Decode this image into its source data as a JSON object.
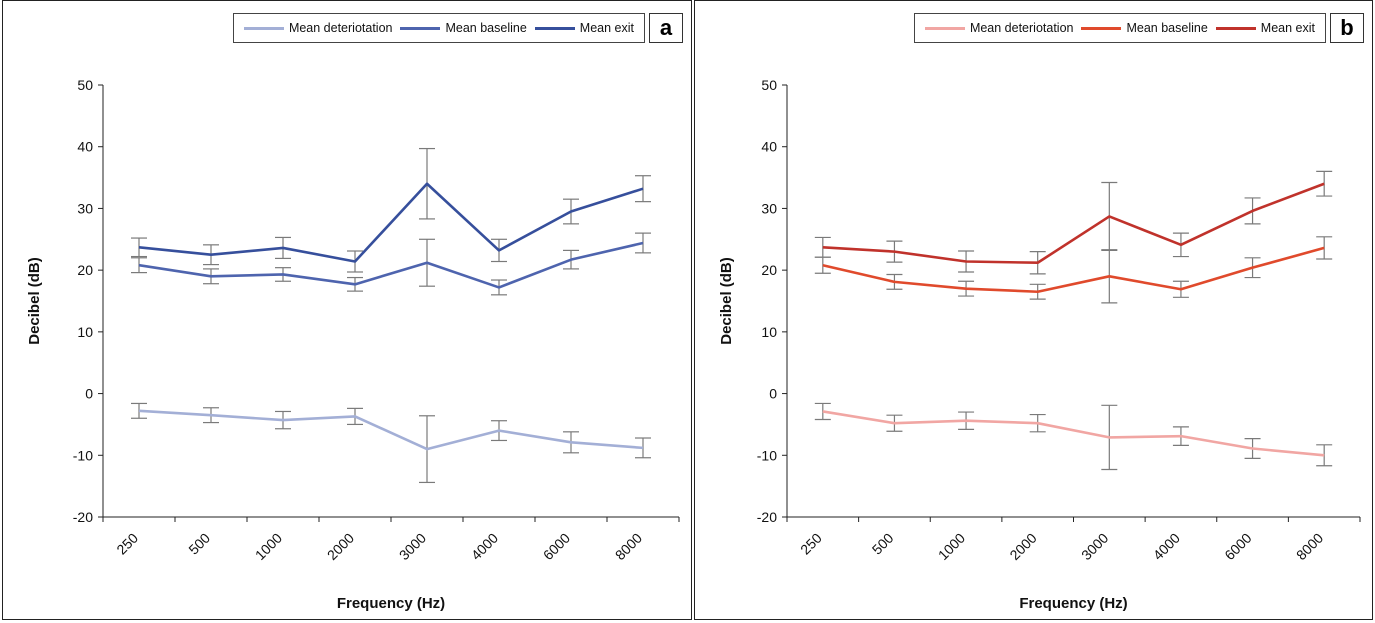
{
  "chart_data": [
    {
      "type": "line",
      "panel_label": "a",
      "categories": [
        "250",
        "500",
        "1000",
        "2000",
        "3000",
        "4000",
        "6000",
        "8000"
      ],
      "xlabel": "Frequency (Hz)",
      "ylabel": "Decibel (dB)",
      "ylim": [
        -20,
        50
      ],
      "yticks": [
        -20,
        -10,
        0,
        10,
        20,
        30,
        40,
        50
      ],
      "grid": false,
      "legend_position": "top-right",
      "series": [
        {
          "name": "Mean deteriotation",
          "color": "#a3afd6",
          "values": [
            -2.8,
            -3.5,
            -4.3,
            -3.7,
            -9,
            -6,
            -7.9,
            -8.8
          ],
          "err": [
            1.2,
            1.2,
            1.4,
            1.3,
            5.4,
            1.6,
            1.7,
            1.6
          ]
        },
        {
          "name": "Mean baseline",
          "color": "#4e64ae",
          "values": [
            20.8,
            19,
            19.3,
            17.7,
            21.2,
            17.2,
            21.7,
            24.4
          ],
          "err": [
            1.2,
            1.2,
            1.1,
            1.1,
            3.8,
            1.2,
            1.5,
            1.6
          ]
        },
        {
          "name": "Mean exit",
          "color": "#364f9c",
          "values": [
            23.7,
            22.5,
            23.6,
            21.4,
            34,
            23.2,
            29.5,
            33.2
          ],
          "err": [
            1.5,
            1.6,
            1.7,
            1.7,
            5.7,
            1.8,
            2,
            2.1
          ]
        }
      ]
    },
    {
      "type": "line",
      "panel_label": "b",
      "categories": [
        "250",
        "500",
        "1000",
        "2000",
        "3000",
        "4000",
        "6000",
        "8000"
      ],
      "xlabel": "Frequency (Hz)",
      "ylabel": "Decibel (dB)",
      "ylim": [
        -20,
        50
      ],
      "yticks": [
        -20,
        -10,
        0,
        10,
        20,
        30,
        40,
        50
      ],
      "grid": false,
      "legend_position": "top-right",
      "series": [
        {
          "name": "Mean deteriotation",
          "color": "#f1a6a3",
          "values": [
            -2.9,
            -4.8,
            -4.4,
            -4.8,
            -7.1,
            -6.9,
            -8.9,
            -10
          ],
          "err": [
            1.3,
            1.3,
            1.4,
            1.4,
            5.2,
            1.5,
            1.6,
            1.7
          ]
        },
        {
          "name": "Mean baseline",
          "color": "#e04a2c",
          "values": [
            20.8,
            18.1,
            17,
            16.5,
            19,
            16.9,
            20.4,
            23.6
          ],
          "err": [
            1.3,
            1.2,
            1.2,
            1.2,
            4.3,
            1.3,
            1.6,
            1.8
          ]
        },
        {
          "name": "Mean exit",
          "color": "#c0322b",
          "values": [
            23.7,
            23,
            21.4,
            21.2,
            28.7,
            24.1,
            29.6,
            34
          ],
          "err": [
            1.6,
            1.7,
            1.7,
            1.8,
            5.5,
            1.9,
            2.1,
            2
          ]
        }
      ]
    }
  ]
}
